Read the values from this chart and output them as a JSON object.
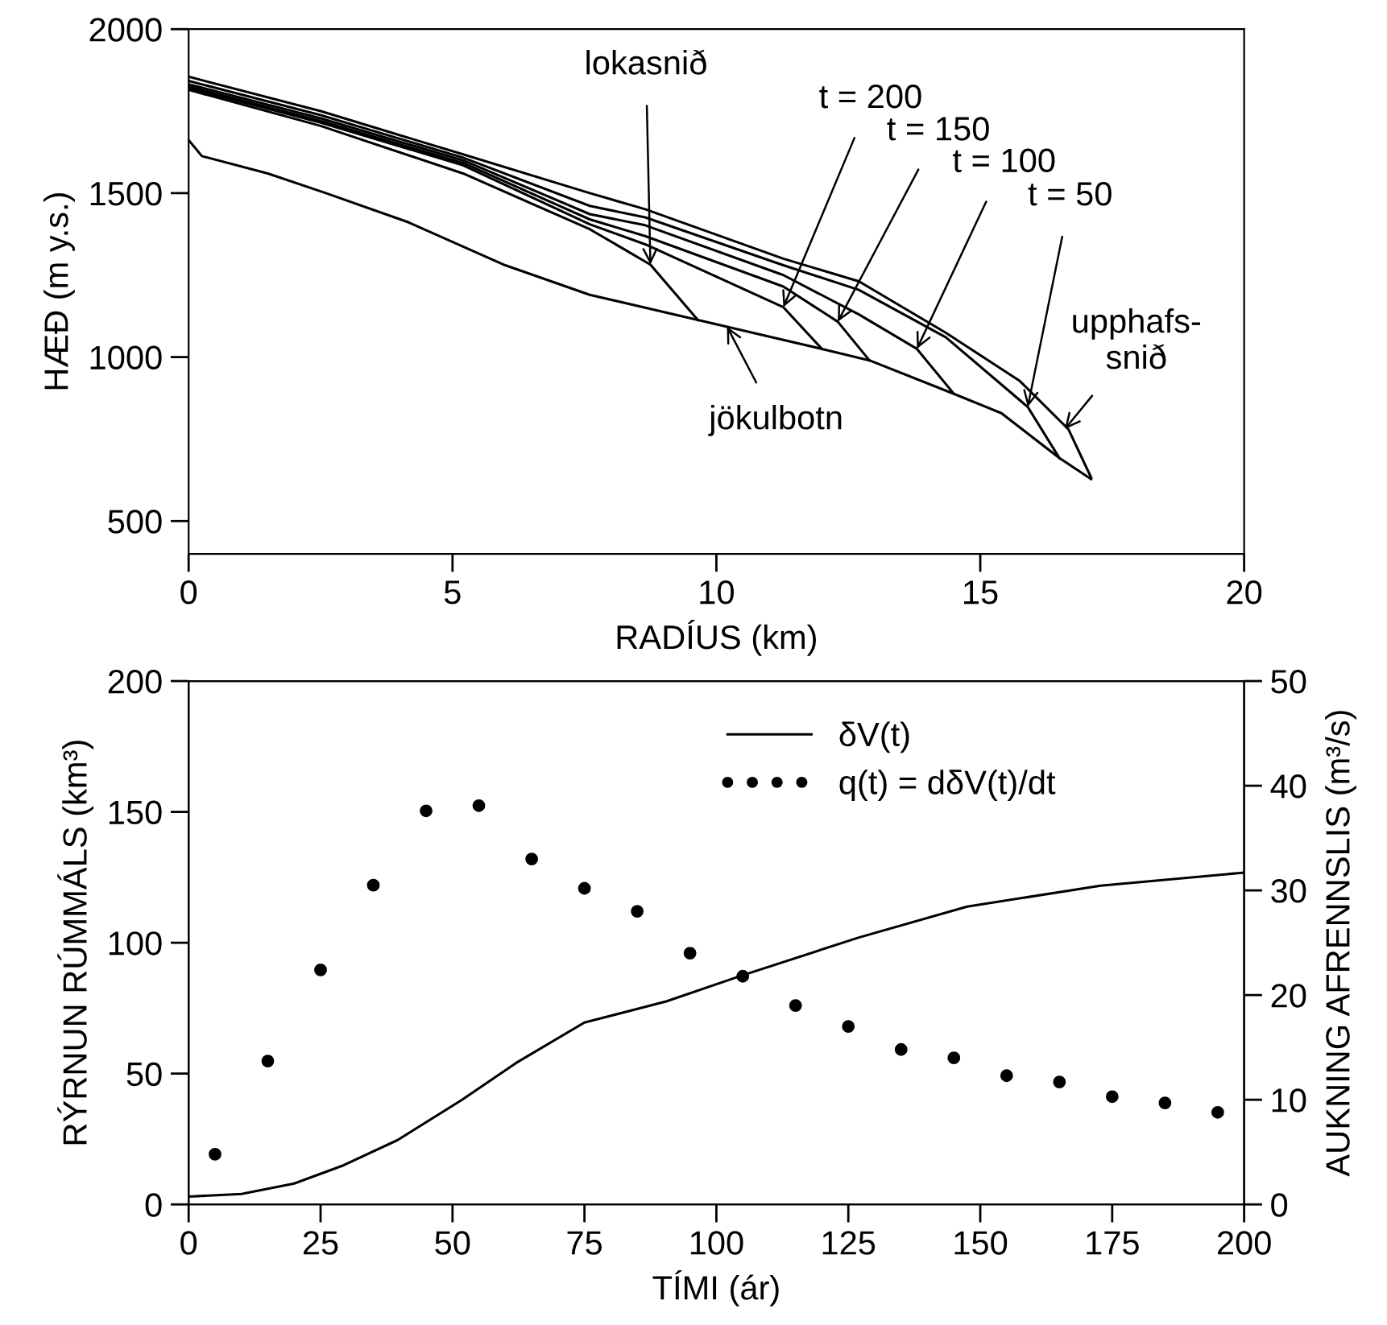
{
  "chart_data": [
    {
      "type": "line",
      "xlabel": "RADÍUS (km)",
      "ylabel": "HÆÐ (m y.s.)",
      "xlim": [
        0,
        20
      ],
      "ylim": [
        400,
        2000
      ],
      "xticks": [
        0,
        5,
        10,
        15,
        20
      ],
      "yticks": [
        500,
        1000,
        1500,
        2000
      ],
      "grid": false,
      "legend": false,
      "series": [
        {
          "color": "#000000",
          "x": [
            0,
            2.5,
            5.2,
            7.6,
            8.65,
            11.27,
            12.7,
            14.35,
            15.75,
            16.67,
            17.1
          ],
          "values": [
            1855,
            1750,
            1618,
            1500,
            1451,
            1300,
            1231,
            1074,
            927,
            780,
            633
          ]
        },
        {
          "color": "#000000",
          "x": [
            0,
            2.5,
            5.2,
            7.6,
            8.65,
            11.27,
            12.7,
            14.35,
            15.9,
            16.5
          ],
          "values": [
            1842,
            1738,
            1608,
            1461,
            1426,
            1280,
            1205,
            1060,
            848,
            692
          ]
        },
        {
          "color": "#000000",
          "x": [
            0,
            2.5,
            5.2,
            7.6,
            8.65,
            11.27,
            12.7,
            13.8,
            14.5
          ],
          "values": [
            1832,
            1728,
            1600,
            1436,
            1402,
            1250,
            1130,
            1025,
            888
          ]
        },
        {
          "color": "#000000",
          "x": [
            0,
            2.5,
            5.2,
            7.6,
            8.65,
            11.27,
            12.3,
            12.9
          ],
          "values": [
            1825,
            1720,
            1592,
            1420,
            1369,
            1215,
            1108,
            990
          ]
        },
        {
          "color": "#000000",
          "x": [
            0,
            2.5,
            5.2,
            7.6,
            8.65,
            11.27,
            12.0
          ],
          "values": [
            1820,
            1715,
            1585,
            1405,
            1344,
            1152,
            1025
          ]
        },
        {
          "color": "#000000",
          "x": [
            0,
            2.5,
            5.2,
            7.6,
            8.75,
            9.65
          ],
          "values": [
            1815,
            1705,
            1560,
            1390,
            1282,
            1113
          ]
        },
        {
          "color": "#000000",
          "x": [
            0,
            0.25,
            1.5,
            2.6,
            4.15,
            6.0,
            7.6,
            9.65,
            12.0,
            12.9,
            14.5,
            15.4,
            16.5,
            17.1
          ],
          "values": [
            1662,
            1613,
            1560,
            1500,
            1412,
            1280,
            1190,
            1113,
            1025,
            990,
            888,
            829,
            692,
            628
          ]
        }
      ],
      "annotations": [
        {
          "text": "lokasnið",
          "x": 8.75,
          "y": 1282
        },
        {
          "text": "t = 200",
          "x": 11.27,
          "y": 1152
        },
        {
          "text": "t = 150",
          "x": 12.3,
          "y": 1108
        },
        {
          "text": "t = 100",
          "x": 13.8,
          "y": 1025
        },
        {
          "text": "t = 50",
          "x": 15.9,
          "y": 848
        },
        {
          "text": "upphafs-\nsnið",
          "x": 16.6,
          "y": 780
        },
        {
          "text": "jökulbotn",
          "x": 10.2,
          "y": 1093
        }
      ]
    },
    {
      "type": "line",
      "xlabel": "TÍMI (ár)",
      "ylabel": "RÝRNUN RÚMMÁLS (km³)",
      "y2label": "AUKNING AFRENNSLIS (m³/s)",
      "xlim": [
        0,
        200
      ],
      "ylim": [
        0,
        200
      ],
      "y2lim": [
        0,
        50
      ],
      "xticks": [
        0,
        25,
        50,
        75,
        100,
        125,
        150,
        175,
        200
      ],
      "yticks": [
        0,
        50,
        100,
        150,
        200
      ],
      "y2ticks": [
        0,
        10,
        20,
        30,
        40,
        50
      ],
      "grid": false,
      "legend": "top right",
      "series": [
        {
          "name": "δV(t)",
          "type": "line",
          "color": "#000000",
          "x": [
            0,
            10,
            20,
            29.4,
            39.6,
            51.8,
            62,
            75,
            90.5,
            104.7,
            127,
            147.5,
            172.8,
            200
          ],
          "values": [
            3,
            4,
            8,
            15,
            24.6,
            40,
            54,
            69.5,
            77.6,
            87.4,
            102,
            113.8,
            121.8,
            126.8
          ]
        },
        {
          "name": "q(t) = dδV(t)/dt",
          "type": "scatter",
          "axis": "y2",
          "marker": "circle",
          "color": "#000000",
          "x": [
            5,
            15,
            25,
            35,
            45,
            55,
            65,
            75,
            85,
            95,
            105,
            115,
            125,
            135,
            145,
            155,
            165,
            175,
            185,
            195
          ],
          "values": [
            4.8,
            13.7,
            22.4,
            30.5,
            37.6,
            38.1,
            33.0,
            30.2,
            28.0,
            24.0,
            21.8,
            19.0,
            17.0,
            14.8,
            14.0,
            12.3,
            11.7,
            10.3,
            9.7,
            8.8
          ]
        }
      ]
    }
  ]
}
